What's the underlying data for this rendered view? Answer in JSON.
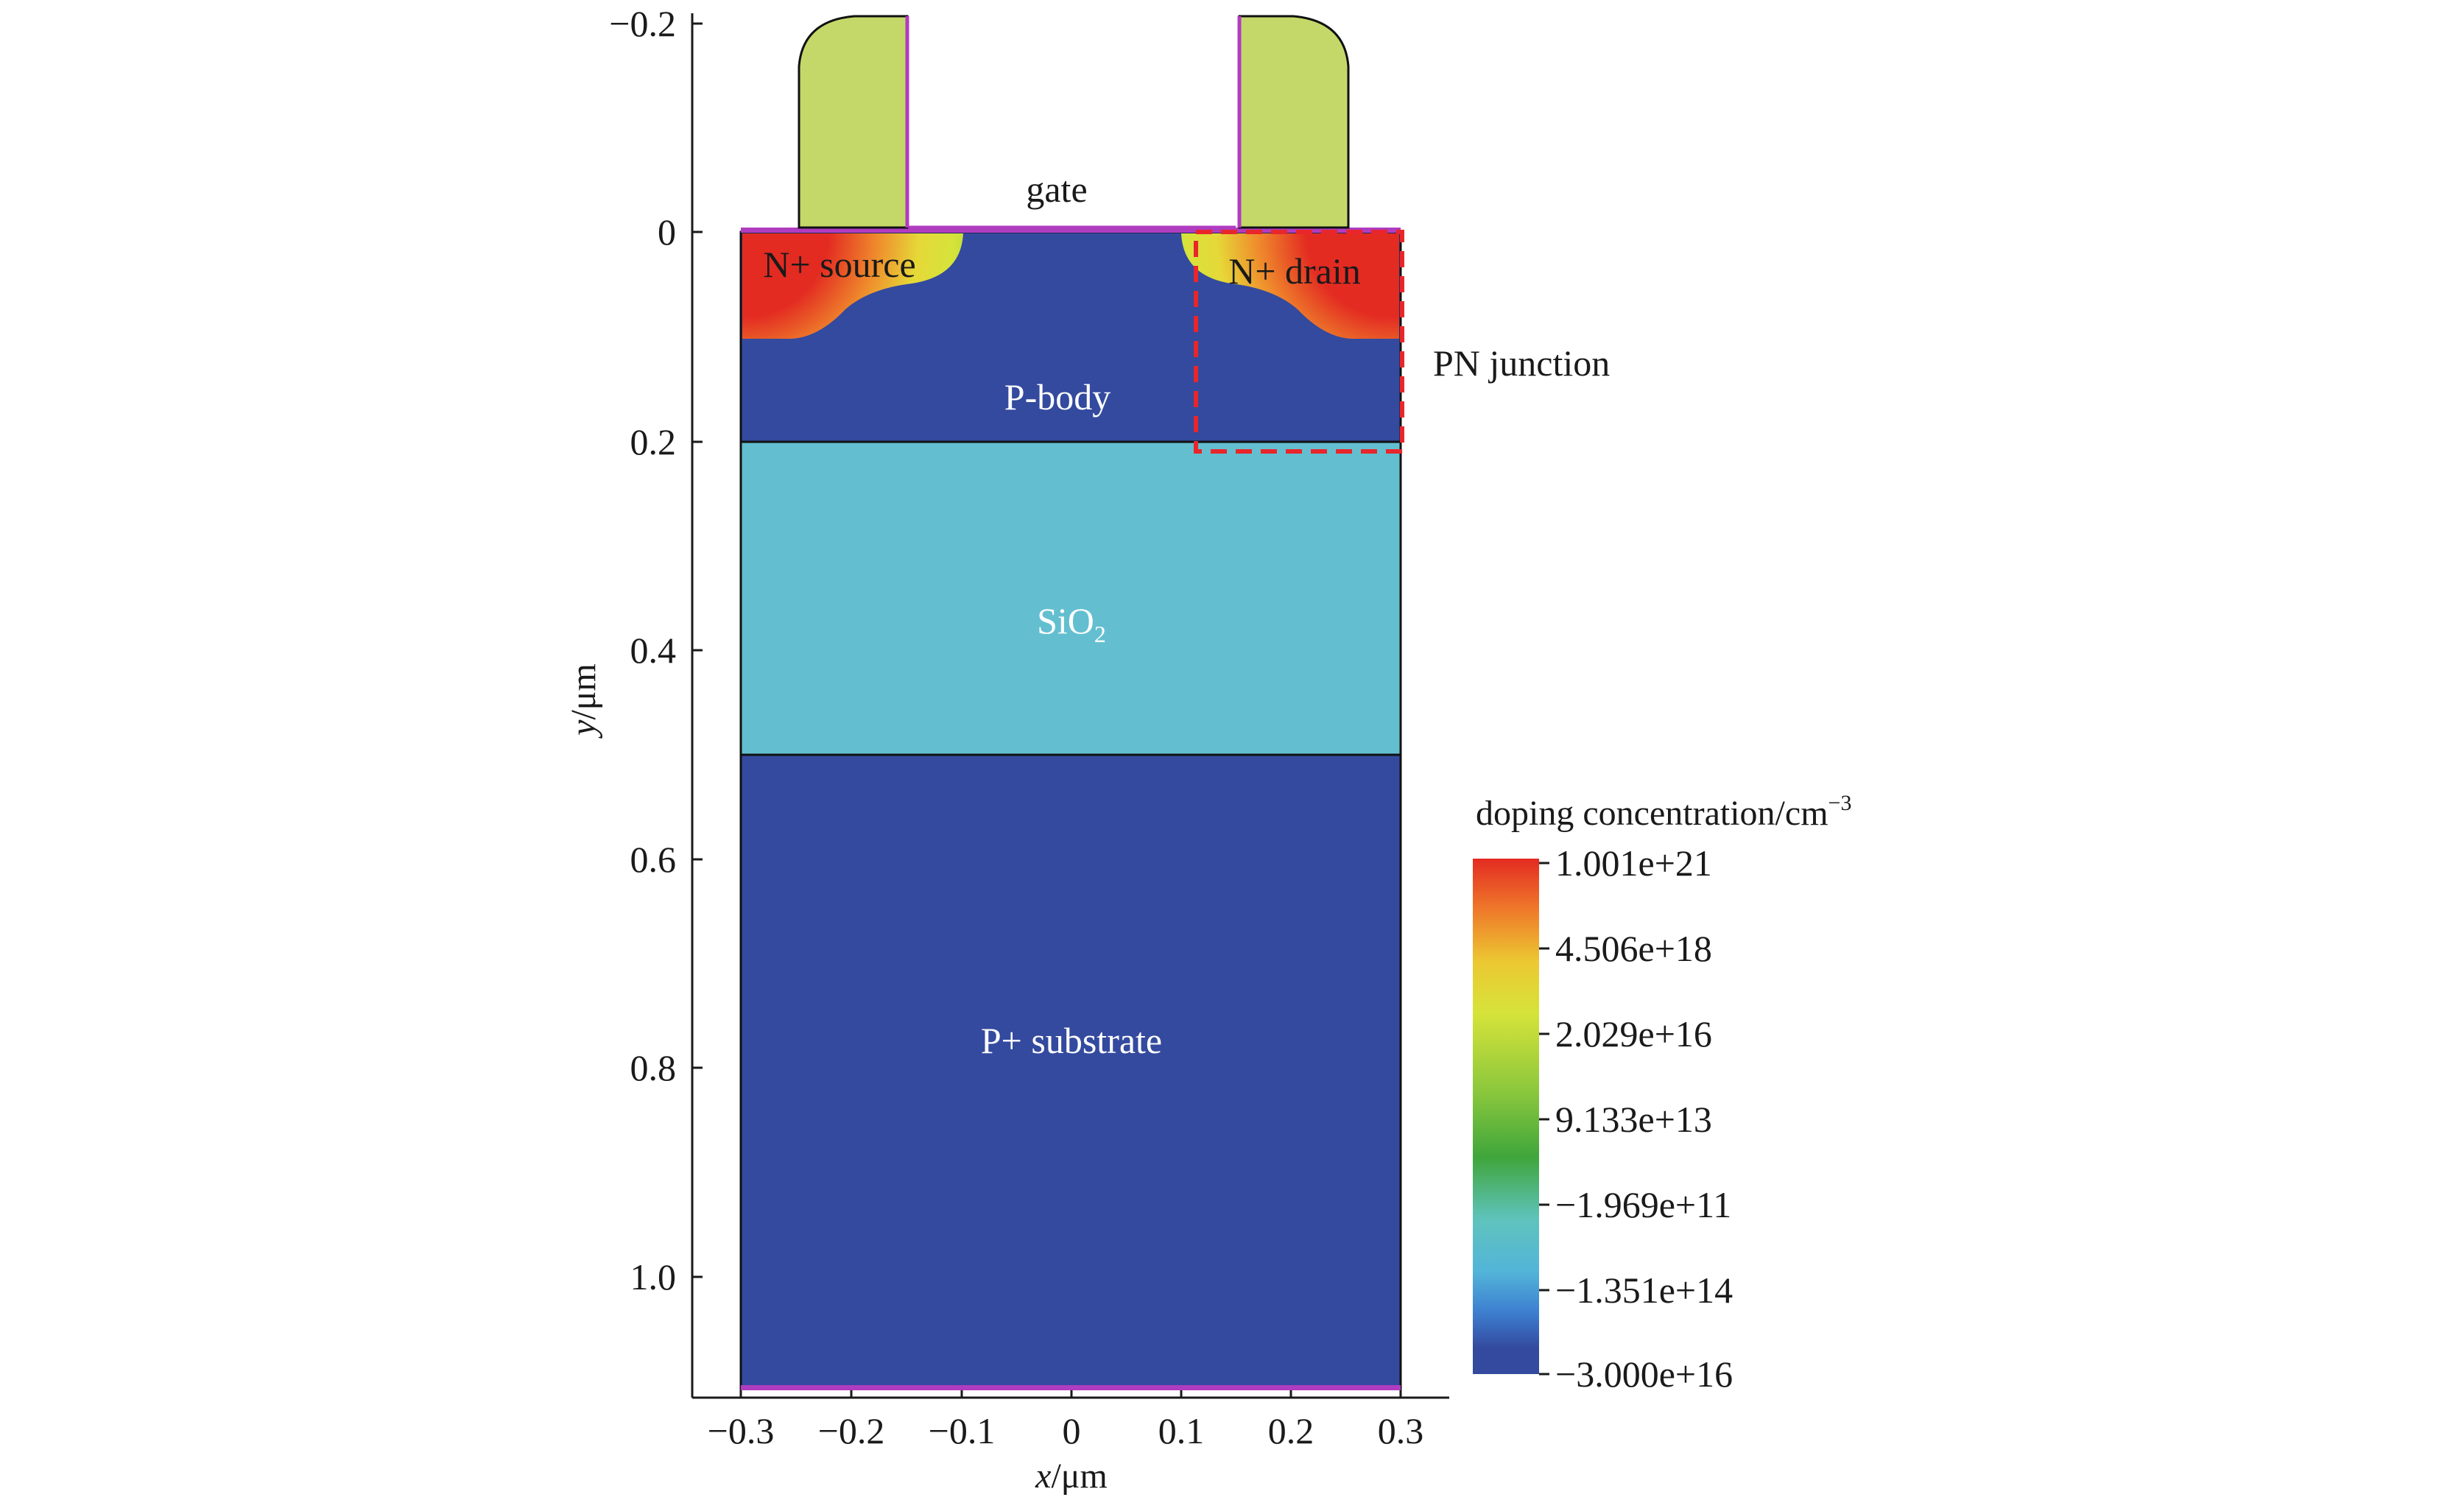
{
  "axes": {
    "x_label_var": "x",
    "x_label_unit": "/μm",
    "y_label_var": "y",
    "y_label_unit": "/μm",
    "x_ticks": [
      "−0.3",
      "−0.2",
      "−0.1",
      "0",
      "0.1",
      "0.2",
      "0.3"
    ],
    "y_ticks": [
      "−0.2",
      "0",
      "0.2",
      "0.4",
      "0.6",
      "0.8",
      "1.0"
    ]
  },
  "regions": {
    "gate": "gate",
    "source": "N+ source",
    "drain": "N+ drain",
    "pbody": "P-body",
    "sio2_main": "SiO",
    "sio2_sub": "2",
    "substrate": "P+ substrate",
    "pn_junction": "PN junction"
  },
  "colorbar": {
    "title_main": "doping concentration/cm",
    "title_sup": "−3",
    "ticks": [
      "1.001e+21",
      "4.506e+18",
      "2.029e+16",
      "9.133e+13",
      "−1.969e+11",
      "−1.351e+14",
      "−3.000e+16"
    ]
  },
  "colors": {
    "p_region": "#334a9e",
    "sio2": "#63bfd0",
    "spacer": "#c4d86a",
    "contact": "#b03cc0",
    "junction_box": "#e8262b",
    "n_plus_high": "#e32b22"
  }
}
